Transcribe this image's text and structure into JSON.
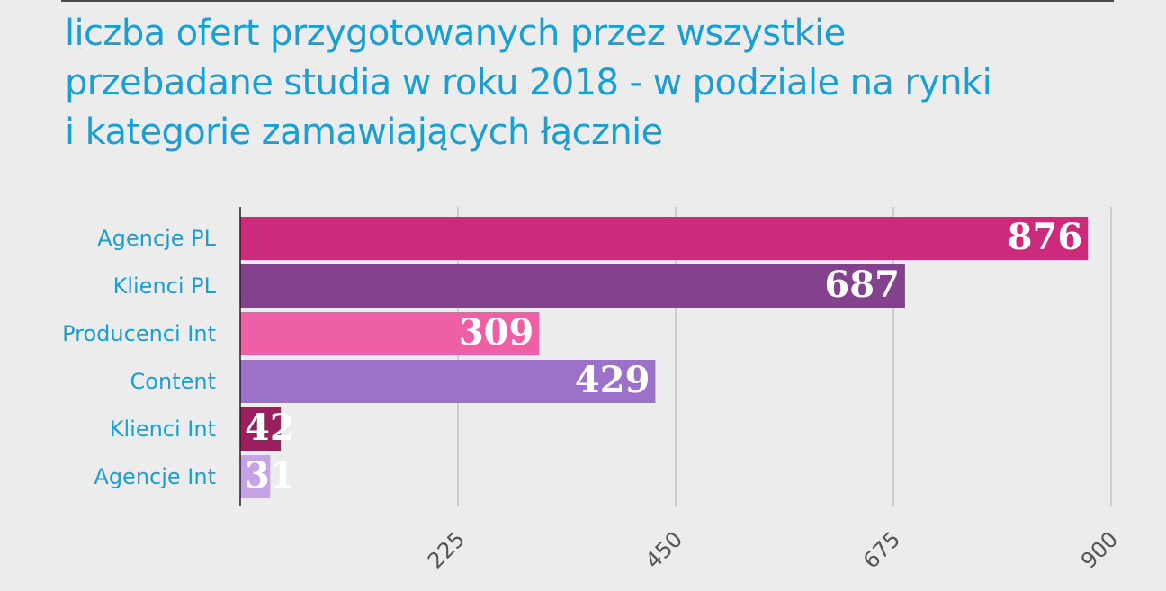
{
  "title_lines": [
    "liczba ofert przygotowanych przez wszystkie",
    "przebadane studia w roku 2018 - w podziale na rynki",
    "i kategorie zamawiających łącznie"
  ],
  "chart_data": {
    "type": "bar",
    "orientation": "horizontal",
    "title": "liczba ofert przygotowanych przez wszystkie przebadane studia w roku 2018 - w podziale na rynki i kategorie zamawiających łącznie",
    "categories": [
      "Agencje PL",
      "Klienci PL",
      "Producenci Int",
      "Content",
      "Klienci Int",
      "Agencje Int"
    ],
    "values": [
      876,
      687,
      309,
      429,
      42,
      31
    ],
    "colors": [
      "#cb2b7a",
      "#84418e",
      "#ee5fa5",
      "#9b71c9",
      "#9c1f5d",
      "#c7a2e6"
    ],
    "xlim": [
      0,
      900
    ],
    "xticks": [
      225,
      450,
      675,
      900
    ],
    "grid": true,
    "xlabel": "",
    "ylabel": "",
    "label_color": "#1a9fd4",
    "value_label_color": "#ffffff",
    "grid_color": "#c4c4c4",
    "tick_color": "#555555"
  }
}
